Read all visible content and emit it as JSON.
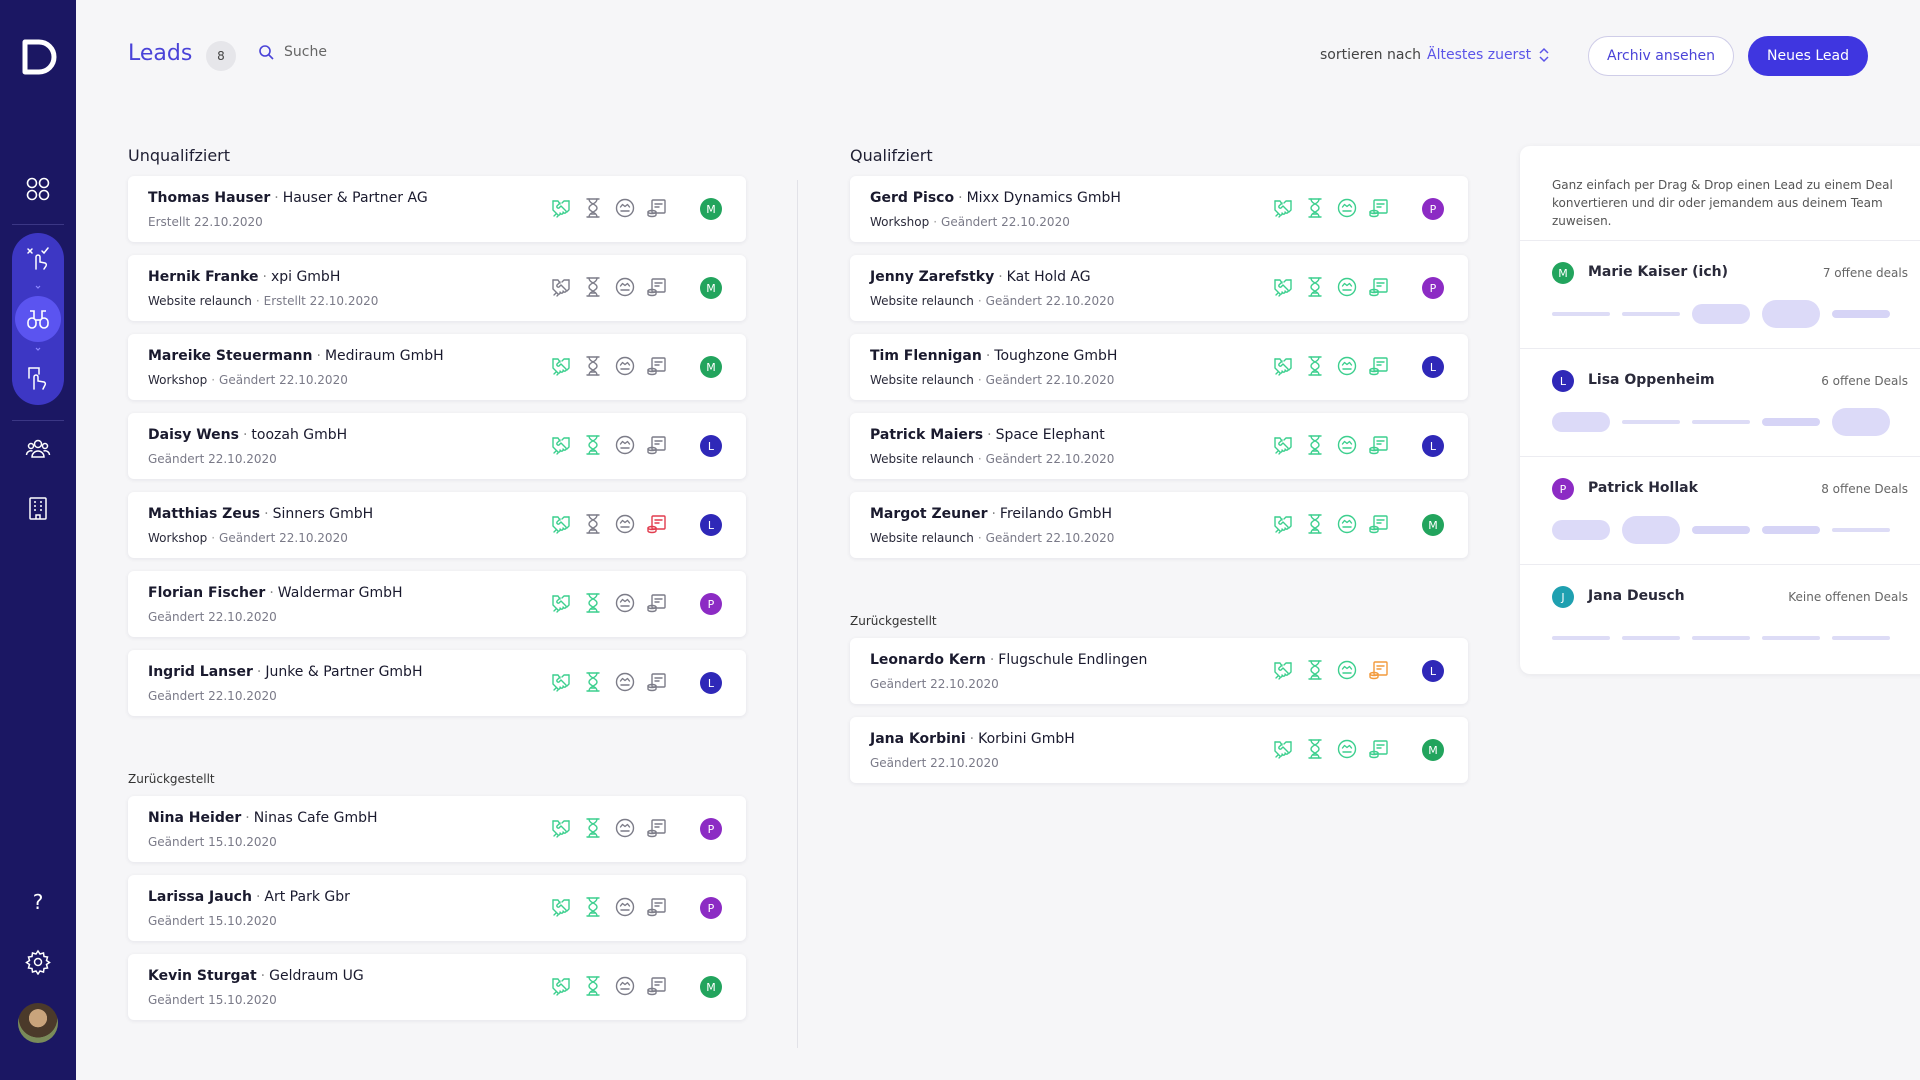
{
  "header": {
    "title": "Leads",
    "count": "8",
    "search_placeholder": "Suche",
    "sort_label": "sortieren nach",
    "sort_value": "Ältestes zuerst",
    "archive_label": "Archiv ansehen",
    "new_label": "Neues Lead"
  },
  "colors": {
    "sidebar": "#1b1763",
    "accent": "#3f36e0",
    "icon_green": "#3ccf8e",
    "icon_gray": "#7c7c88",
    "icon_red": "#e23c4e",
    "icon_orange": "#f29a3c",
    "avatar_M": "#22a45d",
    "avatar_L": "#2f28b8",
    "avatar_P": "#8c2bc4",
    "avatar_J": "#1fa0b0"
  },
  "unqualified": {
    "title": "Unqualifziert",
    "leads": [
      {
        "name": "Thomas Hauser",
        "company": "Hauser & Partner AG",
        "tag": "",
        "date": "Erstellt 22.10.2020",
        "icons": [
          "green",
          "gray",
          "gray",
          "gray"
        ],
        "avatar": "M"
      },
      {
        "name": "Hernik Franke",
        "company": "xpi GmbH",
        "tag": "Website relaunch",
        "date": "Erstellt 22.10.2020",
        "icons": [
          "gray",
          "gray",
          "gray",
          "gray"
        ],
        "avatar": "M"
      },
      {
        "name": "Mareike Steuermann",
        "company": "Mediraum GmbH",
        "tag": "Workshop",
        "date": "Geändert 22.10.2020",
        "icons": [
          "green",
          "gray",
          "gray",
          "gray"
        ],
        "avatar": "M"
      },
      {
        "name": "Daisy Wens",
        "company": "toozah GmbH",
        "tag": "",
        "date": "Geändert 22.10.2020",
        "icons": [
          "green",
          "green",
          "gray",
          "gray"
        ],
        "avatar": "L"
      },
      {
        "name": "Matthias Zeus",
        "company": "Sinners GmbH",
        "tag": "Workshop",
        "date": "Geändert 22.10.2020",
        "icons": [
          "green",
          "gray",
          "gray",
          "red"
        ],
        "avatar": "L"
      },
      {
        "name": "Florian Fischer",
        "company": "Waldermar GmbH",
        "tag": "",
        "date": "Geändert 22.10.2020",
        "icons": [
          "green",
          "green",
          "gray",
          "gray"
        ],
        "avatar": "P"
      },
      {
        "name": "Ingrid Lanser",
        "company": "Junke & Partner GmbH",
        "tag": "",
        "date": "Geändert 22.10.2020",
        "icons": [
          "green",
          "green",
          "gray",
          "gray"
        ],
        "avatar": "L"
      }
    ],
    "deferred_title": "Zurückgestellt",
    "deferred": [
      {
        "name": "Nina Heider",
        "company": "Ninas Cafe GmbH",
        "tag": "",
        "date": "Geändert 15.10.2020",
        "icons": [
          "green",
          "green",
          "gray",
          "gray"
        ],
        "avatar": "P"
      },
      {
        "name": "Larissa Jauch",
        "company": "Art Park Gbr",
        "tag": "",
        "date": "Geändert 15.10.2020",
        "icons": [
          "green",
          "green",
          "gray",
          "gray"
        ],
        "avatar": "P"
      },
      {
        "name": "Kevin Sturgat",
        "company": "Geldraum UG",
        "tag": "",
        "date": "Geändert 15.10.2020",
        "icons": [
          "green",
          "green",
          "gray",
          "gray"
        ],
        "avatar": "M"
      }
    ]
  },
  "qualified": {
    "title": "Qualifziert",
    "leads": [
      {
        "name": "Gerd Pisco",
        "company": "Mixx Dynamics GmbH",
        "tag": "Workshop",
        "date": "Geändert 22.10.2020",
        "icons": [
          "green",
          "green",
          "green",
          "green"
        ],
        "avatar": "P"
      },
      {
        "name": "Jenny Zarefstky",
        "company": "Kat Hold AG",
        "tag": "Website relaunch",
        "date": "Geändert 22.10.2020",
        "icons": [
          "green",
          "green",
          "green",
          "green"
        ],
        "avatar": "P"
      },
      {
        "name": "Tim Flennigan",
        "company": "Toughzone GmbH",
        "tag": "Website relaunch",
        "date": "Geändert 22.10.2020",
        "icons": [
          "green",
          "green",
          "green",
          "green"
        ],
        "avatar": "L"
      },
      {
        "name": "Patrick Maiers",
        "company": "Space Elephant",
        "tag": "Website relaunch",
        "date": "Geändert 22.10.2020",
        "icons": [
          "green",
          "green",
          "green",
          "green"
        ],
        "avatar": "L"
      },
      {
        "name": "Margot Zeuner",
        "company": "Freilando GmbH",
        "tag": "Website relaunch",
        "date": "Geändert 22.10.2020",
        "icons": [
          "green",
          "green",
          "green",
          "green"
        ],
        "avatar": "M"
      }
    ],
    "deferred_title": "Zurückgestellt",
    "deferred": [
      {
        "name": "Leonardo Kern",
        "company": "Flugschule Endlingen",
        "tag": "",
        "date": "Geändert 22.10.2020",
        "icons": [
          "green",
          "green",
          "green",
          "orange"
        ],
        "avatar": "L"
      },
      {
        "name": "Jana Korbini",
        "company": "Korbini GmbH",
        "tag": "",
        "date": "Geändert 22.10.2020",
        "icons": [
          "green",
          "green",
          "green",
          "green"
        ],
        "avatar": "M"
      }
    ]
  },
  "panel": {
    "hint": "Ganz einfach per Drag & Drop einen Lead zu einem Deal konvertieren und dir oder jemandem aus deinem Team zuweisen.",
    "people": [
      {
        "initial": "M",
        "name": "Marie Kaiser (ich)",
        "deals": "7 offene deals",
        "slots": [
          "bar",
          "bar",
          "pill",
          "pill-lg",
          "bar-thick"
        ]
      },
      {
        "initial": "L",
        "name": "Lisa Oppenheim",
        "deals": "6 offene Deals",
        "slots": [
          "pill",
          "bar",
          "bar",
          "bar-thick",
          "pill-lg"
        ]
      },
      {
        "initial": "P",
        "name": "Patrick Hollak",
        "deals": "8 offene Deals",
        "slots": [
          "pill",
          "pill-lg",
          "bar-thick",
          "bar-thick",
          "bar"
        ]
      },
      {
        "initial": "J",
        "name": "Jana Deusch",
        "deals": "Keine offenen Deals",
        "slots": [
          "bar",
          "bar",
          "bar",
          "bar",
          "bar"
        ]
      }
    ]
  },
  "sidebar": {
    "help_label": "?"
  }
}
